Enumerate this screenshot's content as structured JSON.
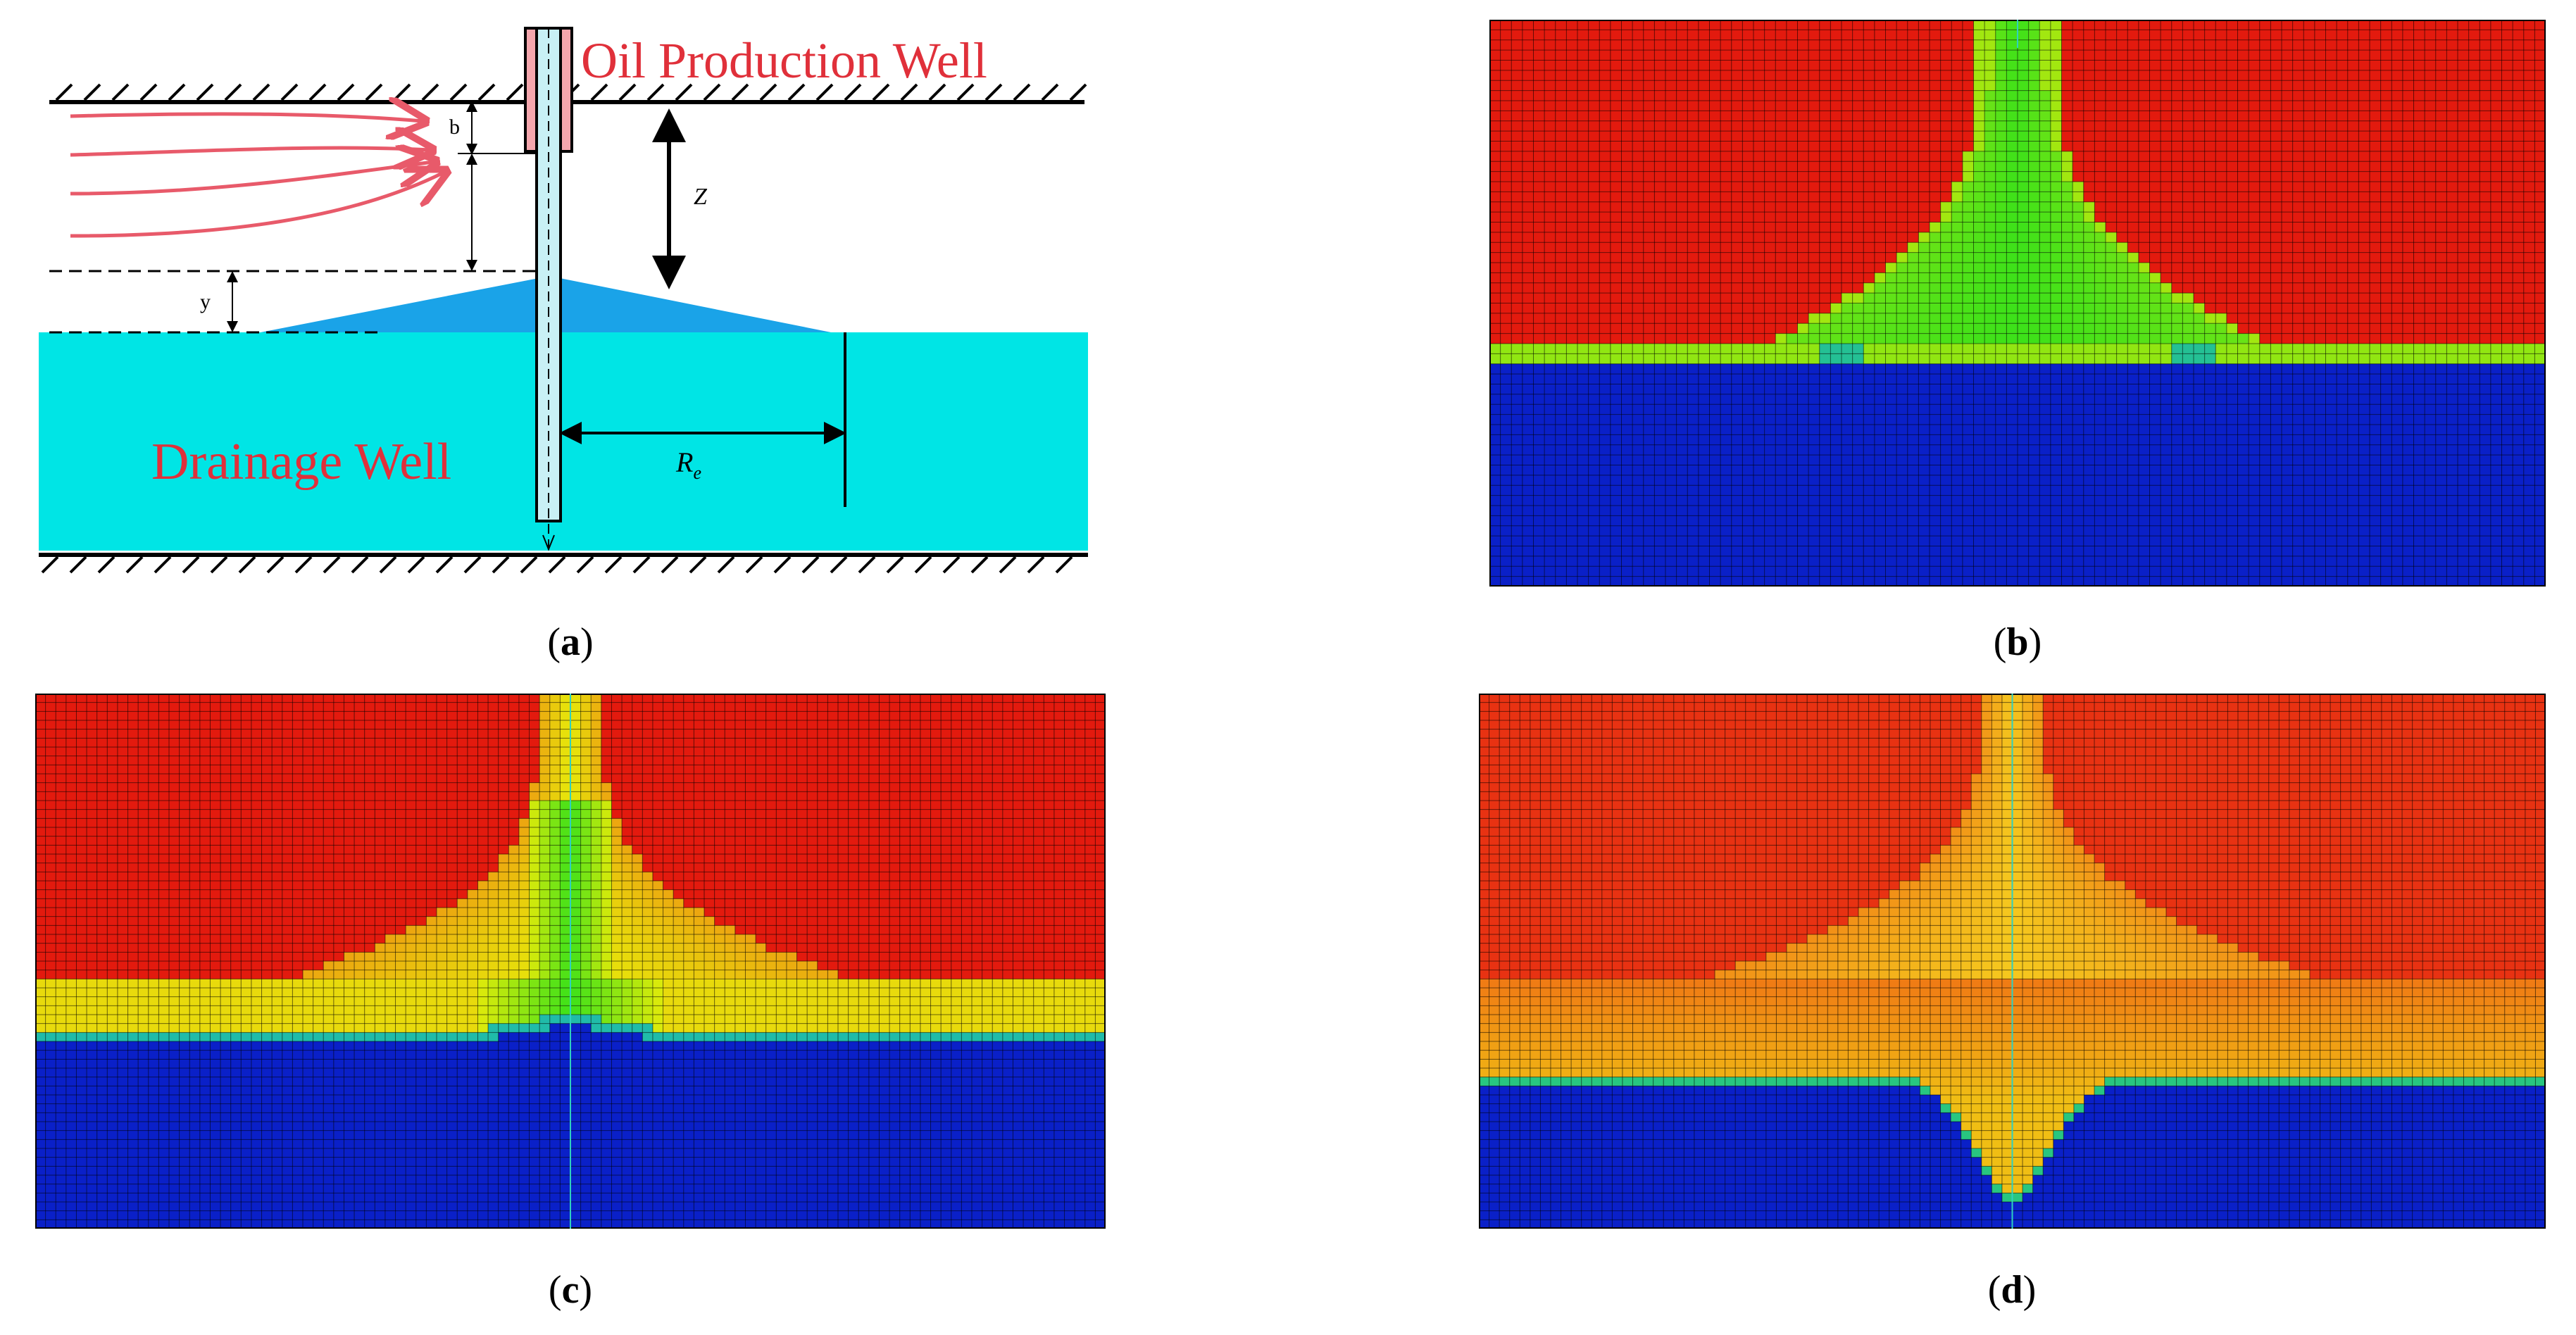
{
  "panel_a": {
    "oil_well_label": "Oil Production Well",
    "drainage_well_label": "Drainage Well",
    "label_b": "b",
    "label_z": "Z",
    "label_y": "y",
    "label_re_main": "R",
    "label_re_sub": "e",
    "caption_letter": "a",
    "colors": {
      "label_red": "#e0303a",
      "water": "#00e5e5",
      "cone": "#1aa3e8",
      "flow_arrows": "#e85a6a",
      "well_cap": "#f4a6ad",
      "well_casing": "#c8f0f5"
    }
  },
  "panel_b": {
    "caption_letter": "b",
    "description_colors": {
      "oil": "#e31a0e",
      "water": "#0a20c8",
      "transition_green": "#3fe01a",
      "transition_yellow": "#d8f000"
    }
  },
  "panel_c": {
    "caption_letter": "c"
  },
  "panel_d": {
    "caption_letter": "d"
  }
}
